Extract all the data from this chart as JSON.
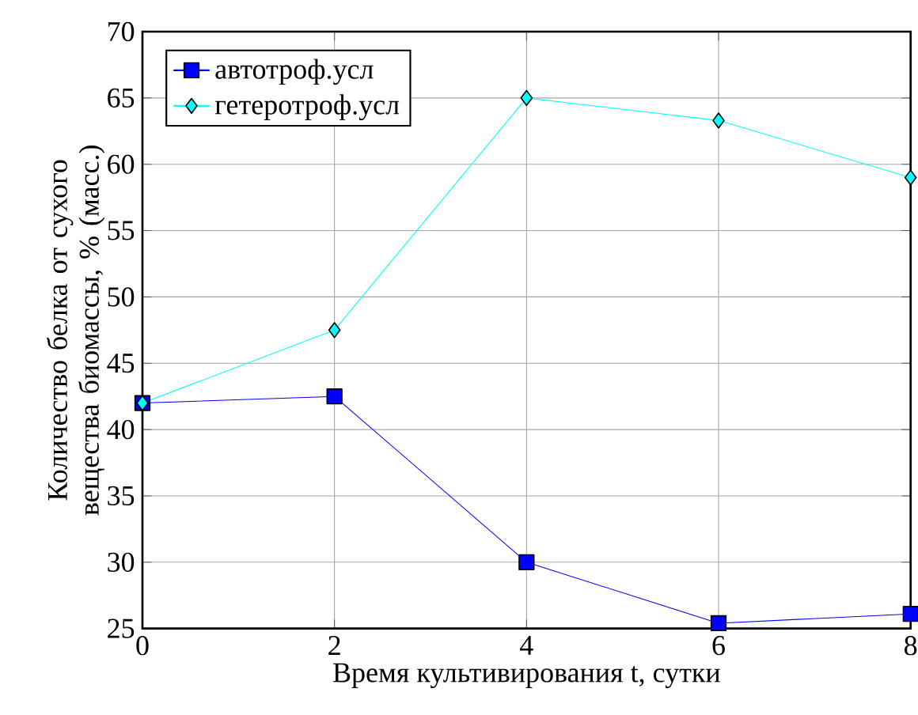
{
  "chart_data": {
    "type": "line",
    "xlabel": "Время культивирования t, сутки",
    "ylabel": "Количество белка от сухого вещества биомассы, % (масс.)",
    "x": [
      0,
      2,
      4,
      6,
      8
    ],
    "series": [
      {
        "name": "автотроф.усл",
        "color": "#0000ff",
        "marker": "square",
        "values": [
          42,
          42.5,
          30,
          25.4,
          26.1
        ]
      },
      {
        "name": "гетеротроф.усл",
        "color": "#00ffff",
        "marker": "diamond",
        "values": [
          42,
          47.5,
          65,
          63.3,
          59
        ]
      }
    ],
    "xlim": [
      0,
      8
    ],
    "ylim": [
      25,
      70
    ],
    "xticks": [
      0,
      2,
      4,
      6,
      8
    ],
    "yticks": [
      25,
      30,
      35,
      40,
      45,
      50,
      55,
      60,
      65,
      70
    ],
    "grid": true,
    "legend": "top left",
    "line_style": "solid"
  }
}
